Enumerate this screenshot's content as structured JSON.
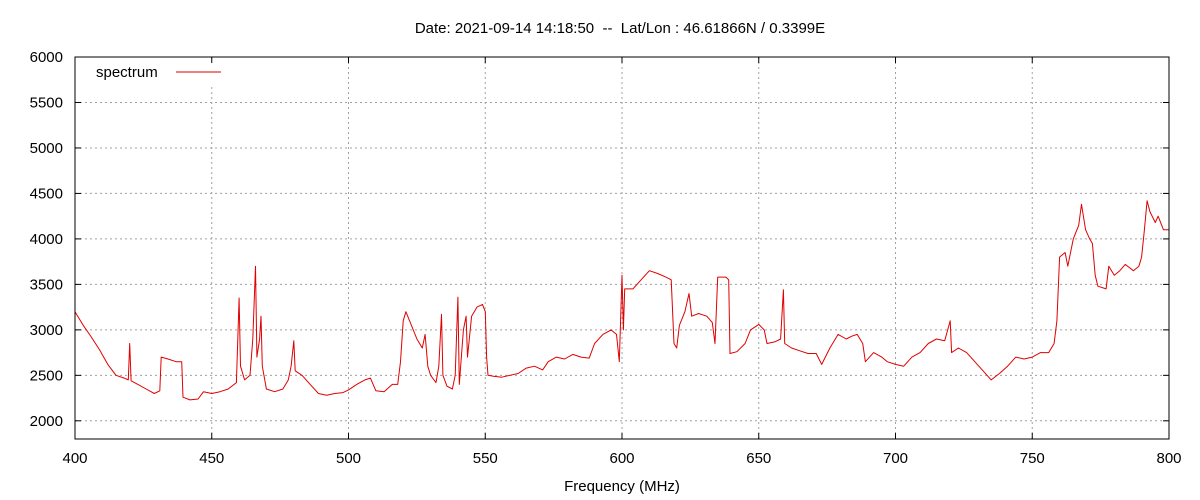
{
  "chart_data": {
    "type": "line",
    "title": "Date: 2021-09-14 14:18:50  --  Lat/Lon : 46.61866N / 0.3399E",
    "xlabel": "Frequency (MHz)",
    "ylabel": "",
    "xlim": [
      400,
      800
    ],
    "ylim": [
      1800,
      6000
    ],
    "xticks": [
      400,
      450,
      500,
      550,
      600,
      650,
      700,
      750,
      800
    ],
    "yticks": [
      2000,
      2500,
      3000,
      3500,
      4000,
      4500,
      5000,
      5500,
      6000
    ],
    "grid": true,
    "legend": "top-left",
    "series": [
      {
        "name": "spectrum",
        "color": "#e00000",
        "points": [
          [
            400,
            3200
          ],
          [
            403,
            3050
          ],
          [
            406,
            2920
          ],
          [
            409,
            2780
          ],
          [
            412,
            2620
          ],
          [
            415,
            2500
          ],
          [
            418,
            2470
          ],
          [
            419.5,
            2450
          ],
          [
            420,
            2850
          ],
          [
            420.5,
            2440
          ],
          [
            423,
            2400
          ],
          [
            426,
            2350
          ],
          [
            429,
            2300
          ],
          [
            431,
            2330
          ],
          [
            431.5,
            2700
          ],
          [
            434,
            2680
          ],
          [
            437,
            2650
          ],
          [
            439,
            2650
          ],
          [
            439.5,
            2260
          ],
          [
            442,
            2230
          ],
          [
            445,
            2240
          ],
          [
            447,
            2320
          ],
          [
            450,
            2300
          ],
          [
            453,
            2320
          ],
          [
            456,
            2350
          ],
          [
            459,
            2420
          ],
          [
            460,
            3350
          ],
          [
            460.5,
            2600
          ],
          [
            462,
            2450
          ],
          [
            464,
            2500
          ],
          [
            465,
            2900
          ],
          [
            466,
            3700
          ],
          [
            466.5,
            2700
          ],
          [
            467.5,
            2900
          ],
          [
            468,
            3150
          ],
          [
            468.5,
            2600
          ],
          [
            470,
            2350
          ],
          [
            473,
            2320
          ],
          [
            476,
            2350
          ],
          [
            478,
            2450
          ],
          [
            479,
            2600
          ],
          [
            480,
            2880
          ],
          [
            480.5,
            2550
          ],
          [
            483,
            2500
          ],
          [
            486,
            2400
          ],
          [
            489,
            2300
          ],
          [
            492,
            2280
          ],
          [
            495,
            2300
          ],
          [
            498,
            2310
          ],
          [
            500,
            2340
          ],
          [
            503,
            2400
          ],
          [
            506,
            2450
          ],
          [
            508,
            2470
          ],
          [
            510,
            2330
          ],
          [
            513,
            2320
          ],
          [
            516,
            2400
          ],
          [
            518,
            2400
          ],
          [
            519,
            2650
          ],
          [
            520,
            3100
          ],
          [
            521,
            3200
          ],
          [
            523,
            3050
          ],
          [
            525,
            2900
          ],
          [
            527,
            2800
          ],
          [
            528,
            2950
          ],
          [
            529,
            2600
          ],
          [
            530,
            2500
          ],
          [
            532,
            2420
          ],
          [
            533,
            2600
          ],
          [
            534,
            3170
          ],
          [
            534.5,
            2500
          ],
          [
            536,
            2380
          ],
          [
            538,
            2350
          ],
          [
            539,
            2500
          ],
          [
            540,
            3360
          ],
          [
            540.5,
            2400
          ],
          [
            542,
            3000
          ],
          [
            543,
            3150
          ],
          [
            543.5,
            2700
          ],
          [
            545,
            3150
          ],
          [
            547,
            3250
          ],
          [
            549,
            3280
          ],
          [
            550,
            3200
          ],
          [
            550.5,
            2700
          ],
          [
            551,
            2500
          ],
          [
            553,
            2490
          ],
          [
            556,
            2480
          ],
          [
            559,
            2500
          ],
          [
            562,
            2520
          ],
          [
            565,
            2580
          ],
          [
            568,
            2600
          ],
          [
            571,
            2560
          ],
          [
            573,
            2650
          ],
          [
            576,
            2700
          ],
          [
            579,
            2680
          ],
          [
            582,
            2730
          ],
          [
            585,
            2700
          ],
          [
            588,
            2690
          ],
          [
            590,
            2850
          ],
          [
            593,
            2950
          ],
          [
            596,
            3000
          ],
          [
            598,
            2950
          ],
          [
            599,
            2650
          ],
          [
            600,
            3600
          ],
          [
            600.5,
            3000
          ],
          [
            601,
            3450
          ],
          [
            604,
            3450
          ],
          [
            607,
            3550
          ],
          [
            610,
            3650
          ],
          [
            613,
            3620
          ],
          [
            616,
            3580
          ],
          [
            618,
            3550
          ],
          [
            619,
            2850
          ],
          [
            620,
            2800
          ],
          [
            621,
            3050
          ],
          [
            623,
            3200
          ],
          [
            624.5,
            3400
          ],
          [
            625.5,
            3150
          ],
          [
            628,
            3180
          ],
          [
            631,
            3150
          ],
          [
            633,
            3080
          ],
          [
            634,
            2850
          ],
          [
            635,
            3580
          ],
          [
            638,
            3580
          ],
          [
            639,
            3550
          ],
          [
            639.5,
            2740
          ],
          [
            642,
            2760
          ],
          [
            645,
            2850
          ],
          [
            647,
            3000
          ],
          [
            650,
            3060
          ],
          [
            652,
            3000
          ],
          [
            653,
            2850
          ],
          [
            656,
            2870
          ],
          [
            658,
            2900
          ],
          [
            659,
            3440
          ],
          [
            659.5,
            2850
          ],
          [
            662,
            2800
          ],
          [
            665,
            2770
          ],
          [
            668,
            2740
          ],
          [
            671,
            2740
          ],
          [
            673,
            2620
          ],
          [
            676,
            2800
          ],
          [
            679,
            2950
          ],
          [
            682,
            2900
          ],
          [
            684,
            2930
          ],
          [
            686,
            2950
          ],
          [
            688,
            2850
          ],
          [
            689,
            2650
          ],
          [
            692,
            2750
          ],
          [
            695,
            2700
          ],
          [
            697,
            2650
          ],
          [
            700,
            2620
          ],
          [
            703,
            2600
          ],
          [
            706,
            2700
          ],
          [
            709,
            2750
          ],
          [
            712,
            2850
          ],
          [
            715,
            2900
          ],
          [
            718,
            2880
          ],
          [
            720,
            3100
          ],
          [
            720.5,
            2750
          ],
          [
            723,
            2800
          ],
          [
            726,
            2750
          ],
          [
            729,
            2650
          ],
          [
            732,
            2550
          ],
          [
            735,
            2450
          ],
          [
            738,
            2520
          ],
          [
            741,
            2600
          ],
          [
            744,
            2700
          ],
          [
            747,
            2680
          ],
          [
            750,
            2700
          ],
          [
            753,
            2750
          ],
          [
            756,
            2750
          ],
          [
            758,
            2850
          ],
          [
            759,
            3100
          ],
          [
            760,
            3800
          ],
          [
            762,
            3850
          ],
          [
            763,
            3700
          ],
          [
            765,
            4000
          ],
          [
            767,
            4150
          ],
          [
            768,
            4380
          ],
          [
            769.5,
            4100
          ],
          [
            771,
            4000
          ],
          [
            772,
            3950
          ],
          [
            773,
            3600
          ],
          [
            774,
            3480
          ],
          [
            777,
            3450
          ],
          [
            778,
            3700
          ],
          [
            780,
            3600
          ],
          [
            782,
            3650
          ],
          [
            784,
            3720
          ],
          [
            787,
            3650
          ],
          [
            789,
            3700
          ],
          [
            790,
            3800
          ],
          [
            791,
            4100
          ],
          [
            792,
            4420
          ],
          [
            793,
            4300
          ],
          [
            795,
            4180
          ],
          [
            796,
            4250
          ],
          [
            798,
            4100
          ],
          [
            800,
            4100
          ]
        ]
      }
    ]
  }
}
